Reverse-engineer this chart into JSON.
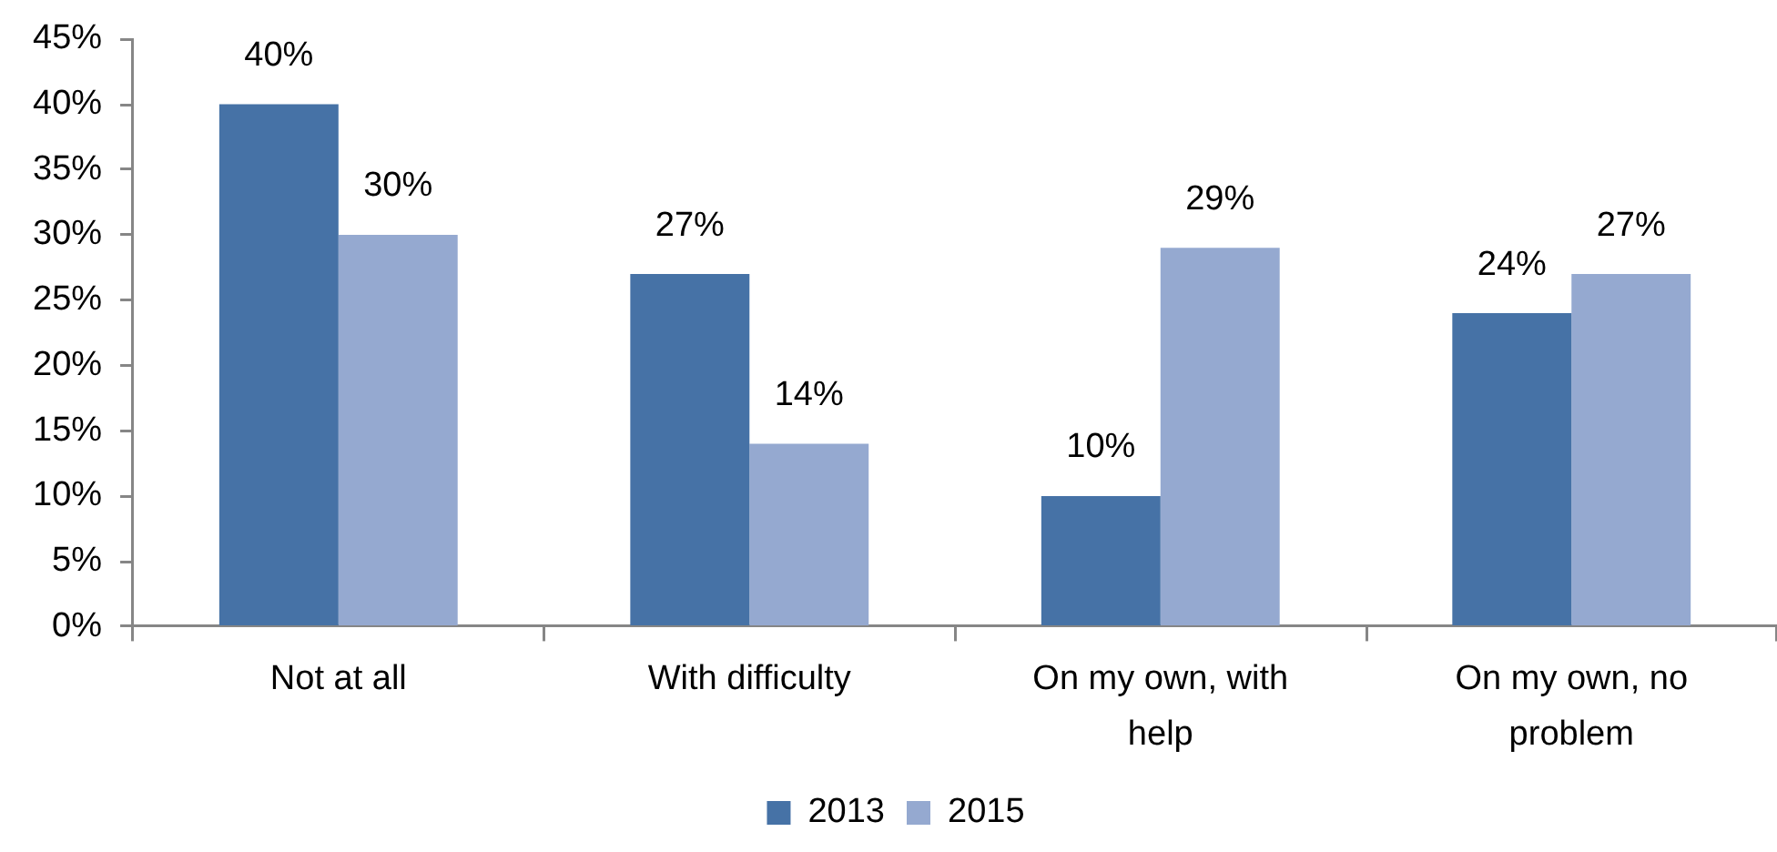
{
  "chart_data": {
    "type": "bar",
    "categories": [
      "Not at all",
      "With difficulty",
      "On my own, with help",
      "On my own, no problem"
    ],
    "series": [
      {
        "name": "2013",
        "color": "#4672a6",
        "values": [
          40,
          27,
          10,
          24
        ],
        "value_labels": [
          "40%",
          "27%",
          "10%",
          "24%"
        ]
      },
      {
        "name": "2015",
        "color": "#95a9d0",
        "values": [
          30,
          14,
          29,
          27
        ],
        "value_labels": [
          "30%",
          "14%",
          "29%",
          "27%"
        ]
      }
    ],
    "ylim": [
      0,
      45
    ],
    "yticks": [
      {
        "value": 0,
        "label": "0%"
      },
      {
        "value": 5,
        "label": "5%"
      },
      {
        "value": 10,
        "label": "10%"
      },
      {
        "value": 15,
        "label": "15%"
      },
      {
        "value": 20,
        "label": "20%"
      },
      {
        "value": 25,
        "label": "25%"
      },
      {
        "value": 30,
        "label": "30%"
      },
      {
        "value": 35,
        "label": "35%"
      },
      {
        "value": 40,
        "label": "40%"
      },
      {
        "value": 45,
        "label": "45%"
      }
    ],
    "grid": false,
    "legend": "bottom"
  }
}
